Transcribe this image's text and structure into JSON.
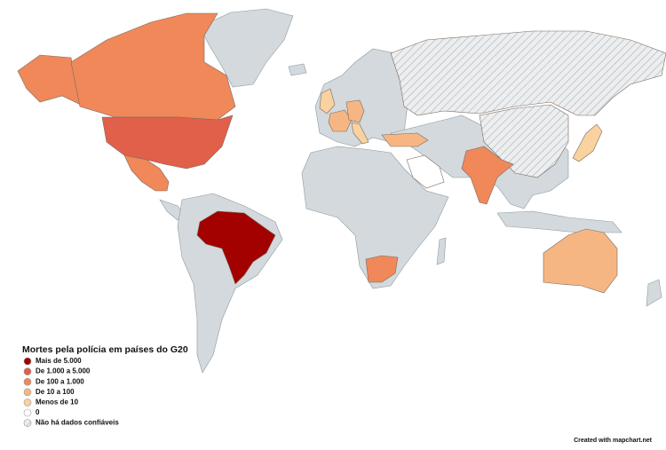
{
  "legend": {
    "title": "Mortes pela polícia em países do G20",
    "items": [
      {
        "label": "Mais de 5.000",
        "color": "#a30000"
      },
      {
        "label": "De 1.000 a 5.000",
        "color": "#e0604a"
      },
      {
        "label": "De 100 a 1.000",
        "color": "#f0885a"
      },
      {
        "label": "De 10 a 100",
        "color": "#f6b683"
      },
      {
        "label": "Menos de 10",
        "color": "#f9d2a0"
      },
      {
        "label": "0",
        "color": "#ffffff"
      },
      {
        "label": "Não há dados confiáveis",
        "color": "#e2e5e7",
        "pattern": "hatch"
      }
    ]
  },
  "credit": "Created with mapchart.net"
}
